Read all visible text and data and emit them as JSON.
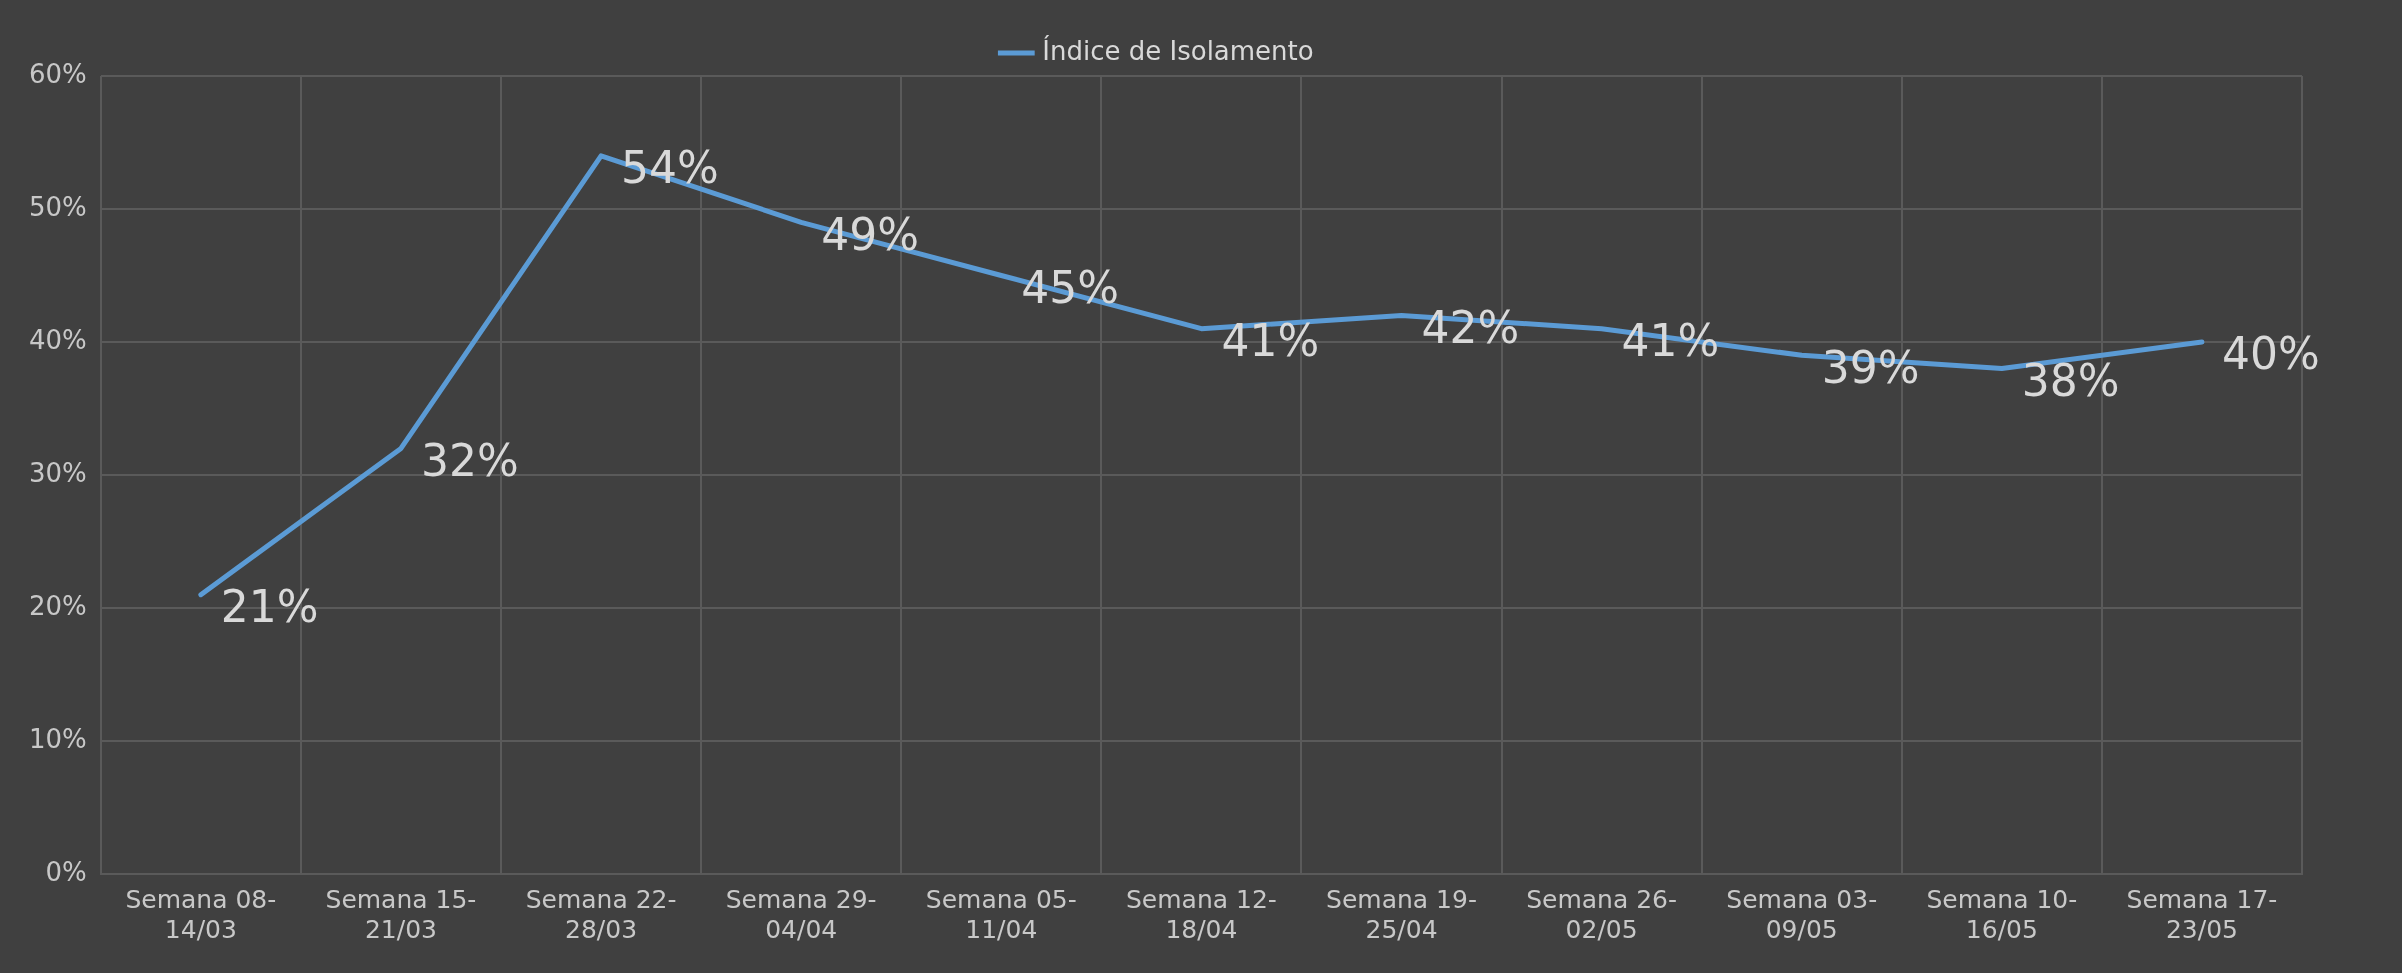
{
  "chart_data": {
    "type": "line",
    "categories": [
      "Semana 08-14/03",
      "Semana 15-21/03",
      "Semana 22-28/03",
      "Semana 29-04/04",
      "Semana 05-11/04",
      "Semana 12-18/04",
      "Semana 19-25/04",
      "Semana 26-02/05",
      "Semana 03-09/05",
      "Semana 10-16/05",
      "Semana 17-23/05"
    ],
    "series": [
      {
        "name": "Índice de Isolamento",
        "color": "#5b9bd5",
        "values": [
          21,
          32,
          54,
          49,
          45,
          41,
          42,
          41,
          39,
          38,
          40
        ],
        "value_labels": [
          "21%",
          "32%",
          "54%",
          "49%",
          "45%",
          "41%",
          "42%",
          "41%",
          "39%",
          "38%",
          "40%"
        ]
      }
    ],
    "ylim": [
      0,
      60
    ],
    "yticks": [
      {
        "value": 0,
        "label": "0%"
      },
      {
        "value": 10,
        "label": "10%"
      },
      {
        "value": 20,
        "label": "20%"
      },
      {
        "value": 30,
        "label": "30%"
      },
      {
        "value": 40,
        "label": "40%"
      },
      {
        "value": 50,
        "label": "50%"
      },
      {
        "value": 60,
        "label": "60%"
      }
    ],
    "grid": true,
    "legend": "top",
    "marker": "none",
    "line_style": "solid"
  }
}
